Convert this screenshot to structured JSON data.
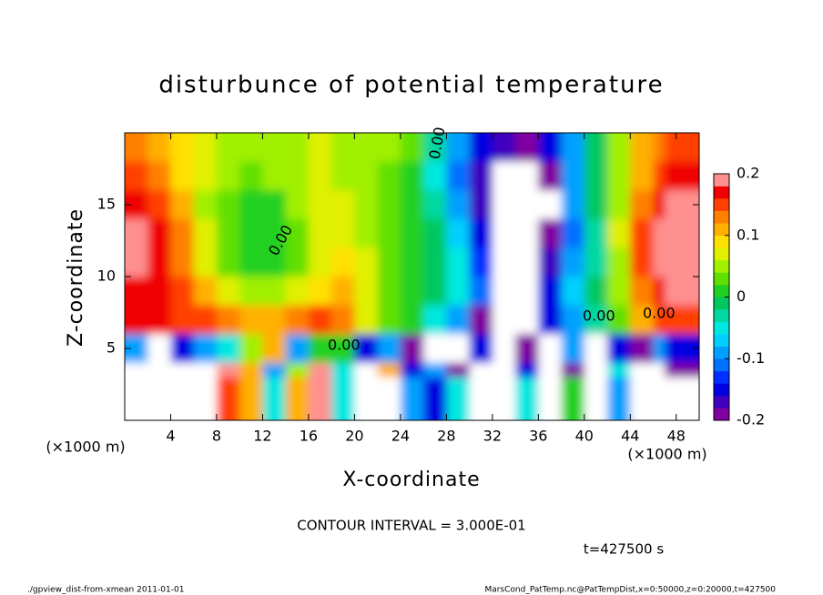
{
  "chart_data": {
    "type": "heatmap",
    "title": "disturbunce of potential temperature",
    "x_label": "X-coordinate",
    "y_label": "Z-coordinate",
    "x_unit": "(×1000 m)",
    "y_unit": "(×1000 m)",
    "contour_label": "0.00",
    "contour_interval": "CONTOUR INTERVAL = 3.000E-01",
    "time_label": "t=427500 s",
    "footer_left": "./gpview_dist-from-xmean  2011-01-01",
    "footer_right": "MarsCond_PatTemp.nc@PatTempDist,x=0:50000,z=0:20000,t=427500",
    "xlim": [
      0,
      50
    ],
    "ylim": [
      0,
      20
    ],
    "xticks": [
      4,
      8,
      12,
      16,
      20,
      24,
      28,
      32,
      36,
      40,
      44,
      48
    ],
    "yticks": [
      5,
      10,
      15
    ],
    "x": [
      1,
      3,
      5,
      7,
      9,
      11,
      13,
      15,
      17,
      19,
      21,
      23,
      25,
      27,
      29,
      31,
      33,
      35,
      37,
      39,
      41,
      43,
      45,
      47,
      49
    ],
    "y": [
      19,
      17,
      15,
      13,
      11,
      9,
      7,
      5,
      3,
      1
    ],
    "z": [
      [
        0.12,
        0.1,
        0.08,
        0.06,
        0.05,
        0.05,
        0.05,
        0.05,
        0.06,
        0.05,
        0.05,
        0.04,
        0.02,
        -0.03,
        -0.1,
        -0.15,
        -0.18,
        -0.19,
        -0.16,
        -0.1,
        -0.02,
        0.05,
        0.1,
        0.13,
        0.15
      ],
      [
        0.14,
        0.12,
        0.09,
        0.06,
        0.04,
        0.03,
        0.04,
        0.05,
        0.06,
        0.05,
        0.04,
        0.03,
        0.0,
        -0.05,
        -0.12,
        -0.17,
        -0.25,
        -0.25,
        -0.2,
        -0.1,
        -0.02,
        0.05,
        0.1,
        0.14,
        0.16
      ],
      [
        0.16,
        0.14,
        0.1,
        0.05,
        0.02,
        0.0,
        0.01,
        0.04,
        0.06,
        0.06,
        0.05,
        0.03,
        0.0,
        -0.03,
        -0.1,
        -0.17,
        -0.25,
        -0.25,
        -0.22,
        -0.1,
        -0.02,
        0.05,
        0.12,
        0.16,
        0.18
      ],
      [
        0.18,
        0.16,
        0.12,
        0.06,
        0.02,
        0.0,
        0.0,
        0.03,
        0.06,
        0.07,
        0.05,
        0.02,
        0.0,
        -0.02,
        -0.08,
        -0.15,
        -0.25,
        -0.25,
        -0.2,
        -0.12,
        -0.03,
        0.06,
        0.14,
        0.18,
        0.2
      ],
      [
        0.18,
        0.16,
        0.12,
        0.07,
        0.03,
        0.01,
        0.01,
        0.03,
        0.06,
        0.08,
        0.06,
        0.02,
        0.0,
        -0.02,
        -0.06,
        -0.14,
        -0.25,
        -0.25,
        -0.18,
        -0.1,
        -0.03,
        0.04,
        0.14,
        0.18,
        0.2
      ],
      [
        0.17,
        0.16,
        0.14,
        0.1,
        0.07,
        0.05,
        0.05,
        0.06,
        0.08,
        0.1,
        0.06,
        0.02,
        0.0,
        -0.02,
        -0.06,
        -0.12,
        -0.25,
        -0.25,
        -0.15,
        -0.08,
        -0.02,
        0.05,
        0.12,
        0.16,
        0.2
      ],
      [
        0.16,
        0.16,
        0.15,
        0.14,
        0.12,
        0.1,
        0.1,
        0.12,
        0.14,
        0.12,
        0.06,
        0.02,
        0.0,
        -0.05,
        -0.1,
        -0.2,
        -0.25,
        -0.25,
        -0.15,
        -0.1,
        -0.04,
        0.02,
        0.1,
        0.14,
        0.15
      ],
      [
        -0.1,
        -0.25,
        -0.15,
        -0.1,
        -0.05,
        0.05,
        0.1,
        -0.1,
        0.0,
        0.0,
        -0.15,
        -0.1,
        -0.2,
        -0.25,
        -0.25,
        -0.15,
        -0.25,
        -0.2,
        -0.25,
        -0.1,
        -0.25,
        -0.15,
        -0.2,
        -0.1,
        -0.15
      ],
      [
        -0.25,
        -0.25,
        -0.25,
        -0.25,
        0.2,
        0.1,
        -0.1,
        0.05,
        0.2,
        -0.05,
        -0.25,
        0.1,
        -0.15,
        -0.1,
        -0.2,
        -0.25,
        -0.25,
        -0.15,
        -0.25,
        -0.2,
        -0.25,
        -0.05,
        -0.25,
        -0.25,
        -0.2
      ],
      [
        -0.25,
        -0.25,
        -0.25,
        -0.25,
        0.15,
        0.1,
        -0.05,
        0.1,
        0.2,
        -0.05,
        -0.25,
        -0.25,
        -0.1,
        -0.15,
        -0.05,
        -0.25,
        -0.25,
        -0.05,
        -0.25,
        0.0,
        -0.25,
        -0.1,
        -0.25,
        -0.25,
        -0.25
      ]
    ],
    "clim": [
      -0.2,
      0.2
    ],
    "cticks": [
      -0.2,
      -0.1,
      0,
      0.1,
      0.2
    ],
    "colorscale": [
      "#8000a0",
      "#4000c0",
      "#0000e0",
      "#0030ff",
      "#0070ff",
      "#00a0ff",
      "#00d0ff",
      "#00e8e0",
      "#00d8a0",
      "#00c860",
      "#20d020",
      "#60e000",
      "#a0f000",
      "#e0f000",
      "#ffe000",
      "#ffb000",
      "#ff8000",
      "#ff4000",
      "#f00000",
      "#ff9090"
    ],
    "out_of_range_color": "#ffffff"
  }
}
